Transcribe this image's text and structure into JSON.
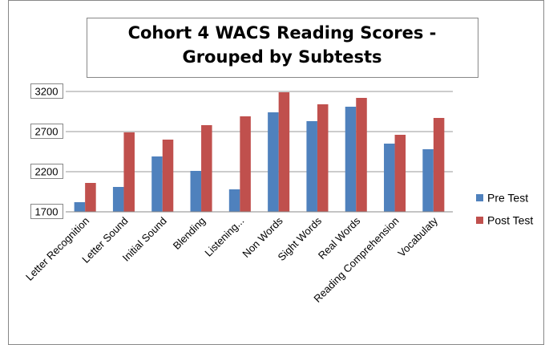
{
  "chart_data": {
    "type": "bar",
    "title": "Cohort 4 WACS Reading Scores - Grouped by Subtests",
    "categories": [
      "Letter Recognition",
      "Letter Sound",
      "Initial Sound",
      "Blending",
      "Listening...",
      "Non Words",
      "Sight Words",
      "Real Words",
      "Reading Comprehension",
      "Vocabulaty"
    ],
    "series": [
      {
        "name": "Pre Test",
        "color": "#4f81bd",
        "values": [
          1820,
          2010,
          2390,
          2210,
          1980,
          2940,
          2830,
          3010,
          2550,
          2480
        ]
      },
      {
        "name": "Post Test",
        "color": "#c0504d",
        "values": [
          2060,
          2690,
          2600,
          2780,
          2890,
          3190,
          3040,
          3120,
          2660,
          2870
        ]
      }
    ],
    "ylim": [
      1700,
      3200
    ],
    "yticks": [
      1700,
      2200,
      2700,
      3200
    ],
    "grid": true,
    "legend": "right"
  }
}
